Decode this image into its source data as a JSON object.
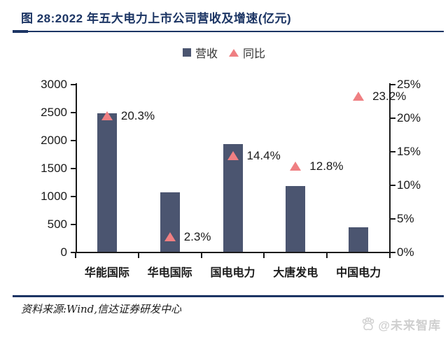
{
  "figure": {
    "title": "图 28:2022 年五大电力上市公司营收及增速(亿元)"
  },
  "legend": {
    "items": [
      {
        "label": "营收",
        "marker": "square-icon",
        "color": "#4b5570"
      },
      {
        "label": "同比",
        "marker": "triangle-icon",
        "color": "#ef7f82"
      }
    ]
  },
  "chart_data": {
    "type": "bar",
    "subtype": "combo-bar-with-scatter-triangles",
    "categories": [
      "华能国际",
      "华电国际",
      "国电电力",
      "大唐发电",
      "中国电力"
    ],
    "series": [
      {
        "name": "营收",
        "type": "bar",
        "axis": "left",
        "color": "#4b5570",
        "values": [
          2470,
          1060,
          1920,
          1170,
          440
        ]
      },
      {
        "name": "同比",
        "type": "scatter",
        "marker": "triangle",
        "axis": "right",
        "color": "#ef7f82",
        "values": [
          20.3,
          2.3,
          14.4,
          12.8,
          23.2
        ],
        "labels": [
          "20.3%",
          "2.3%",
          "14.4%",
          "12.8%",
          "23.2%"
        ]
      }
    ],
    "left_axis": {
      "min": 0,
      "max": 3000,
      "tick_labels": [
        "0",
        "500",
        "1000",
        "1500",
        "2000",
        "2500",
        "3000"
      ]
    },
    "right_axis": {
      "min": 0,
      "max": 25,
      "tick_labels": [
        "0%",
        "5%",
        "10%",
        "15%",
        "20%",
        "25%"
      ]
    },
    "grid": false,
    "legend_position": "top-center",
    "title": "2022 年五大电力上市公司营收及增速(亿元)"
  },
  "footer": {
    "source": "资料来源:Wind,信达证券研发中心"
  },
  "watermark": {
    "icon": "paw-logo-icon",
    "text": "@未来智库"
  }
}
